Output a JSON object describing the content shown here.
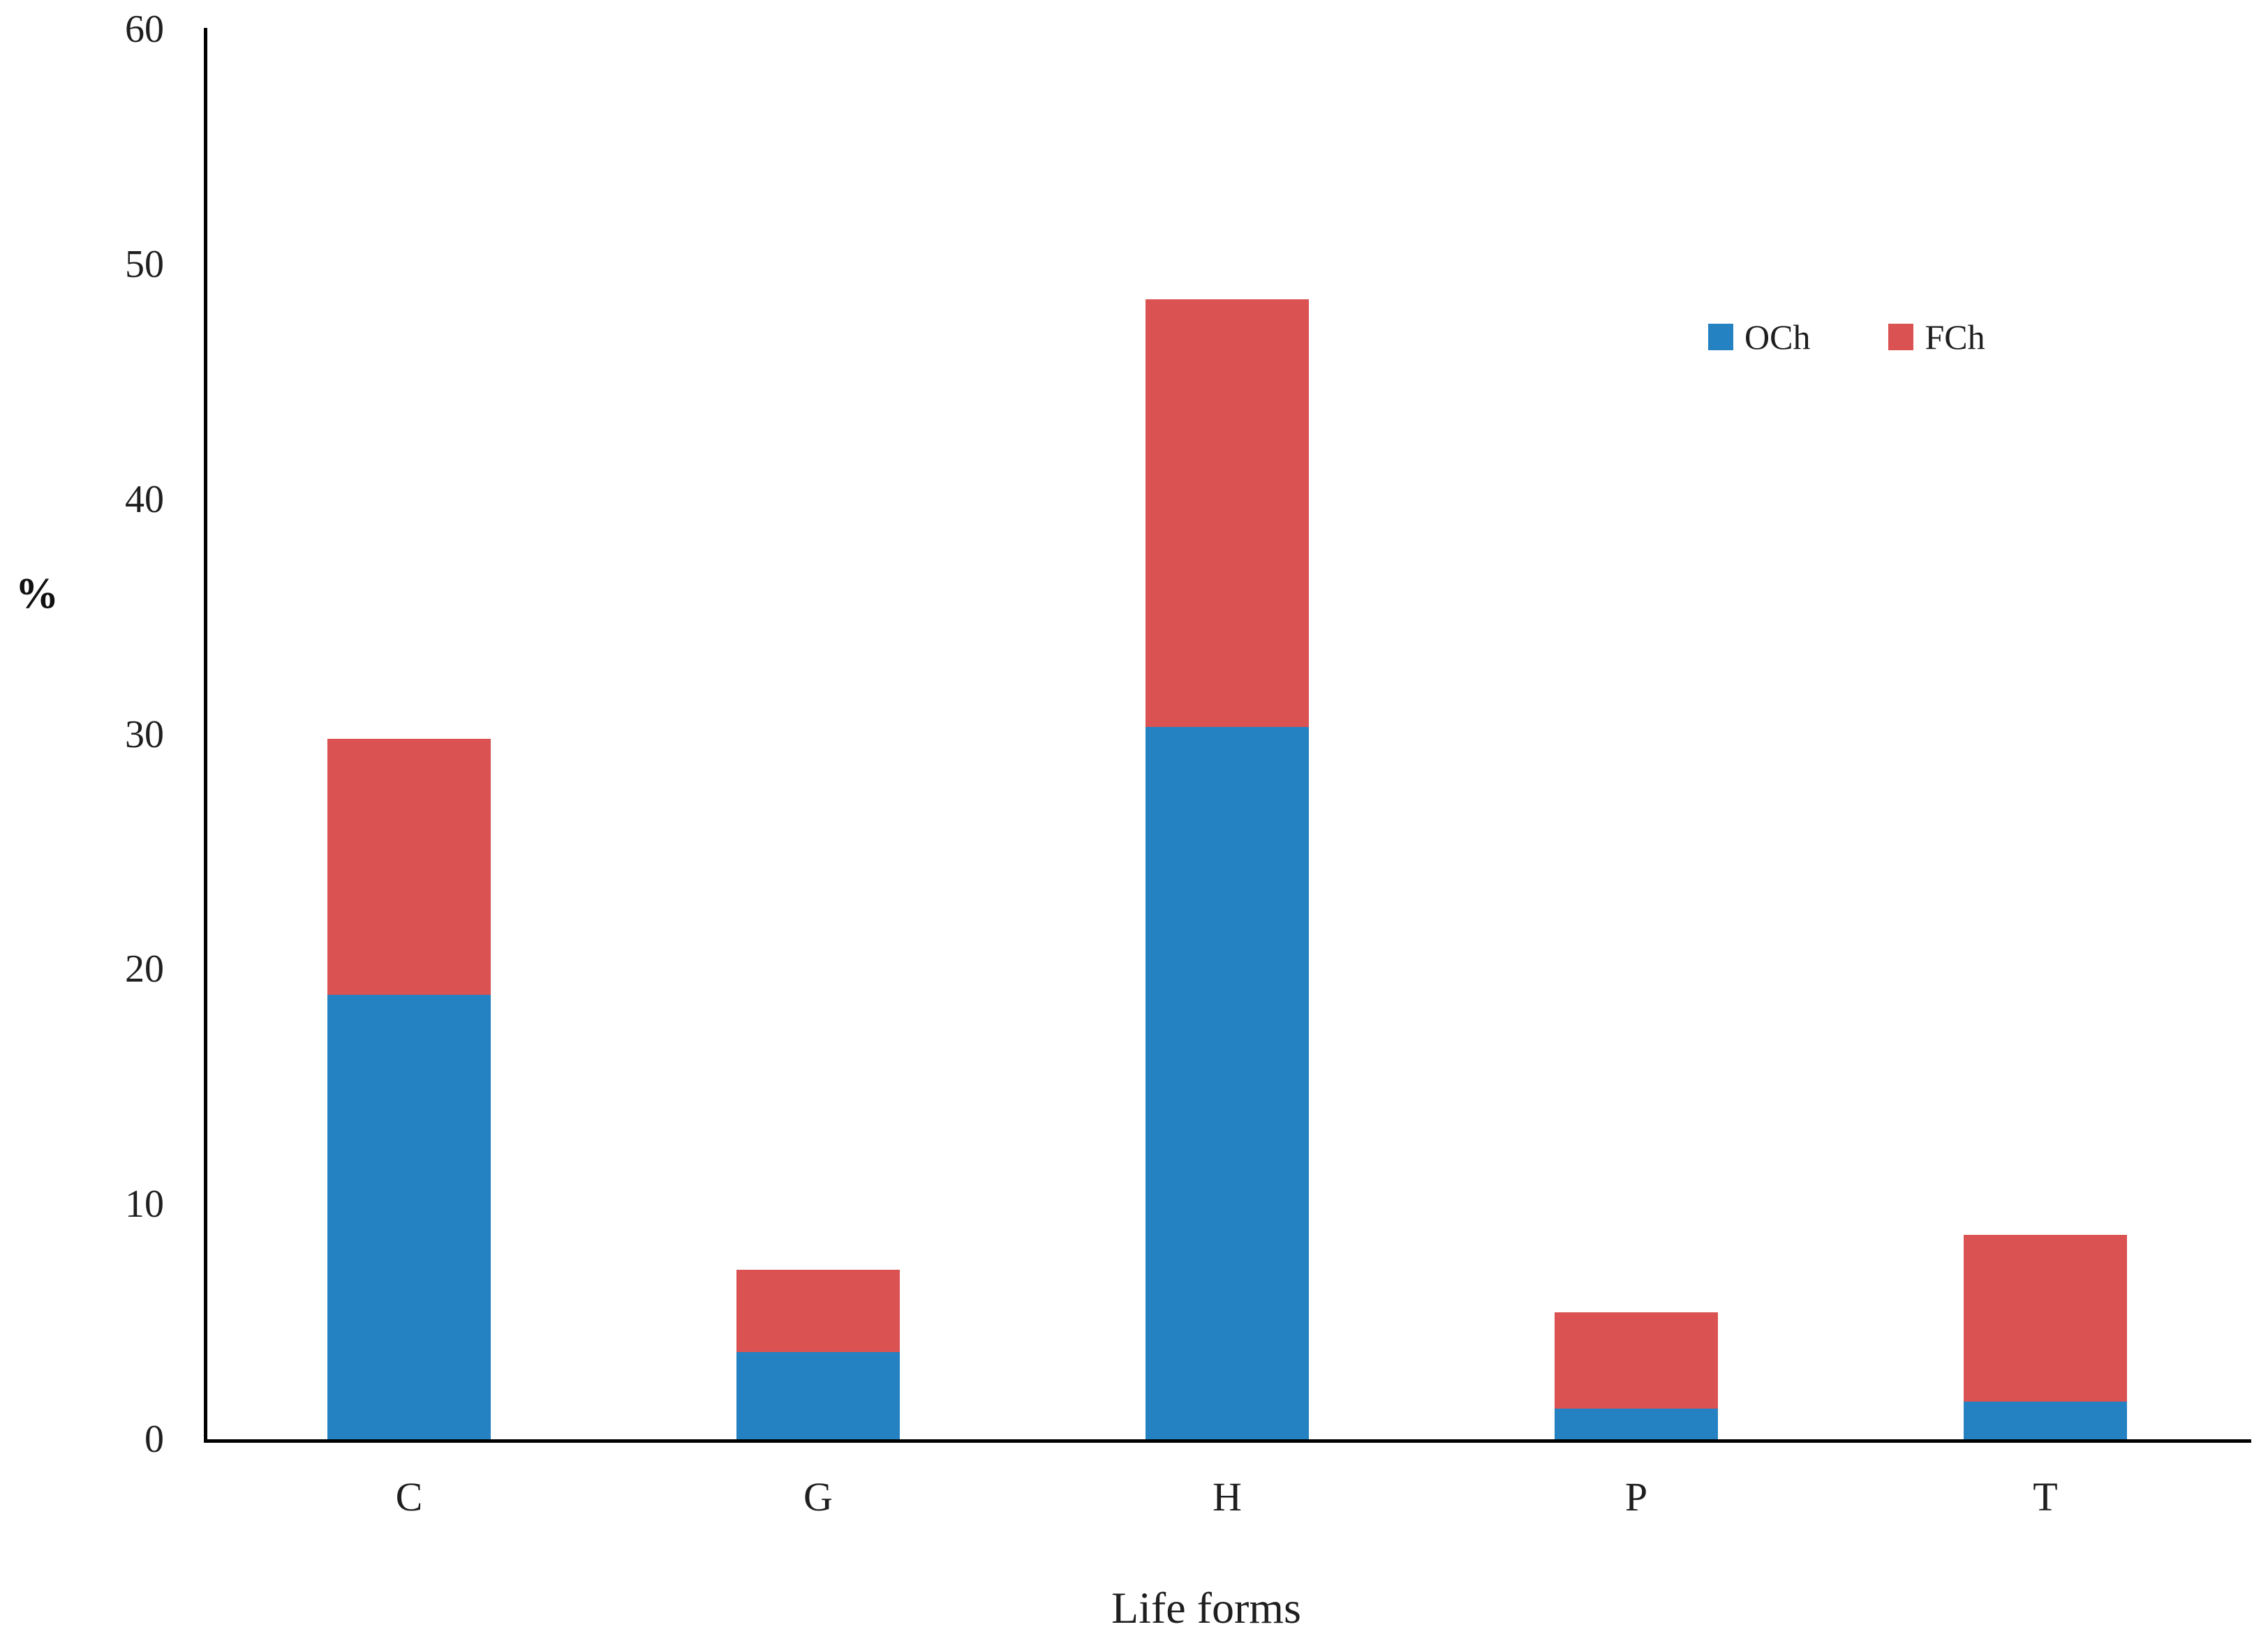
{
  "chart_data": {
    "type": "bar",
    "stacked": true,
    "title": "",
    "xlabel": "Life forms",
    "ylabel": "%",
    "categories": [
      "C",
      "G",
      "H",
      "P",
      "T"
    ],
    "series": [
      {
        "name": "OCh",
        "color": "#2481C2",
        "values": [
          18.9,
          3.7,
          30.3,
          1.3,
          1.6
        ]
      },
      {
        "name": "FCh",
        "color": "#DB5252",
        "values": [
          10.9,
          3.5,
          18.2,
          4.1,
          7.1
        ]
      }
    ],
    "totals": [
      29.8,
      7.2,
      48.5,
      5.4,
      8.7
    ],
    "ylim": [
      0,
      60
    ],
    "yticks": [
      0,
      10,
      20,
      30,
      40,
      50,
      60
    ],
    "grid": false,
    "legend_position": "top-right",
    "axis_color": "#000000"
  }
}
